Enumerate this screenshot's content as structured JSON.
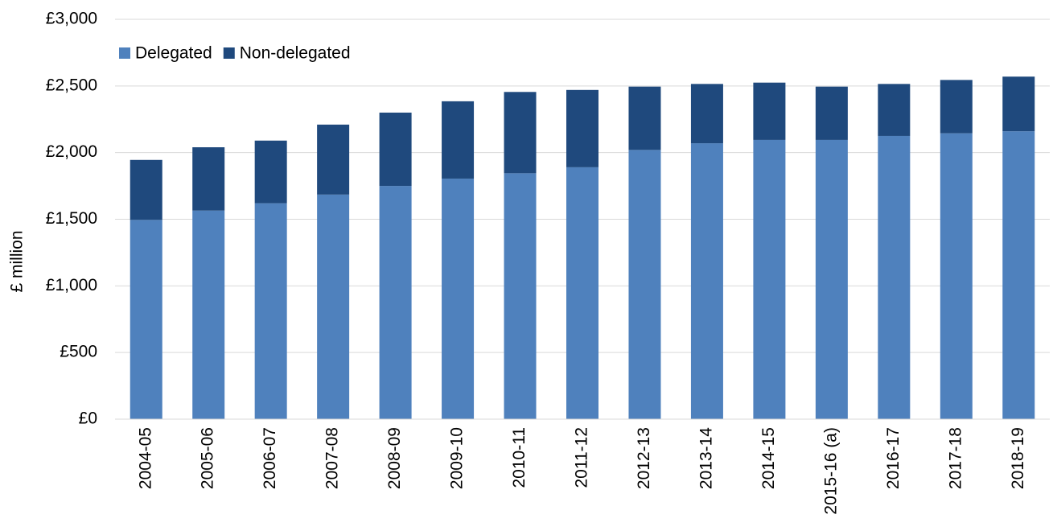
{
  "chart_data": {
    "type": "stacked_bar",
    "y_label": "£ million",
    "categories": [
      "2004-05",
      "2005-06",
      "2006-07",
      "2007-08",
      "2008-09",
      "2009-10",
      "2010-11",
      "2011-12",
      "2012-13",
      "2013-14",
      "2014-15",
      "2015-16 (a)",
      "2016-17",
      "2017-18",
      "2018-19"
    ],
    "series": [
      {
        "name": "Delegated",
        "color": "#4f81bd",
        "values": [
          1495,
          1565,
          1620,
          1685,
          1750,
          1805,
          1845,
          1890,
          2020,
          2070,
          2095,
          2095,
          2125,
          2145,
          2160
        ]
      },
      {
        "name": "Non-delegated",
        "color": "#1f497d",
        "values": [
          450,
          475,
          470,
          525,
          550,
          580,
          610,
          580,
          475,
          445,
          430,
          400,
          390,
          400,
          410
        ]
      }
    ],
    "ylim": [
      0,
      3000
    ],
    "yticks": [
      {
        "value": 0,
        "label": "£0"
      },
      {
        "value": 500,
        "label": "£500"
      },
      {
        "value": 1000,
        "label": "£1,000"
      },
      {
        "value": 1500,
        "label": "£1,500"
      },
      {
        "value": 2000,
        "label": "£2,000"
      },
      {
        "value": 2500,
        "label": "£2,500"
      },
      {
        "value": 3000,
        "label": "£3,000"
      }
    ],
    "grid": true,
    "legend": "top-left"
  }
}
